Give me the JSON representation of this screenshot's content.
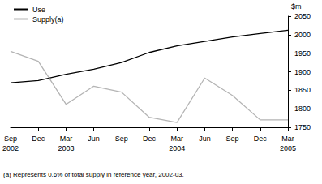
{
  "chart_data": {
    "type": "line",
    "categories": [
      "Sep\n2002",
      "Dec",
      "Mar\n2003",
      "Jun",
      "Sep",
      "Dec",
      "Mar\n2004",
      "Jun",
      "Sep",
      "Dec",
      "Mar\n2005"
    ],
    "series": [
      {
        "name": "Use",
        "color": "#000000",
        "values": [
          1870,
          1876,
          1893,
          1907,
          1925,
          1952,
          1970,
          1982,
          1994,
          2003,
          2012
        ]
      },
      {
        "name": "Supply(a)",
        "color": "#b4b4b4",
        "values": [
          1955,
          1928,
          1812,
          1861,
          1845,
          1777,
          1763,
          1883,
          1836,
          1770,
          1770
        ]
      }
    ],
    "y_label": "$m",
    "ylim": [
      1750,
      2050
    ],
    "yticks": [
      1750,
      1800,
      1850,
      1900,
      1950,
      2000,
      2050
    ],
    "grid": false,
    "legend": "top-left",
    "footnote": "(a) Represents 0.6% of total supply in reference year, 2002-03."
  }
}
